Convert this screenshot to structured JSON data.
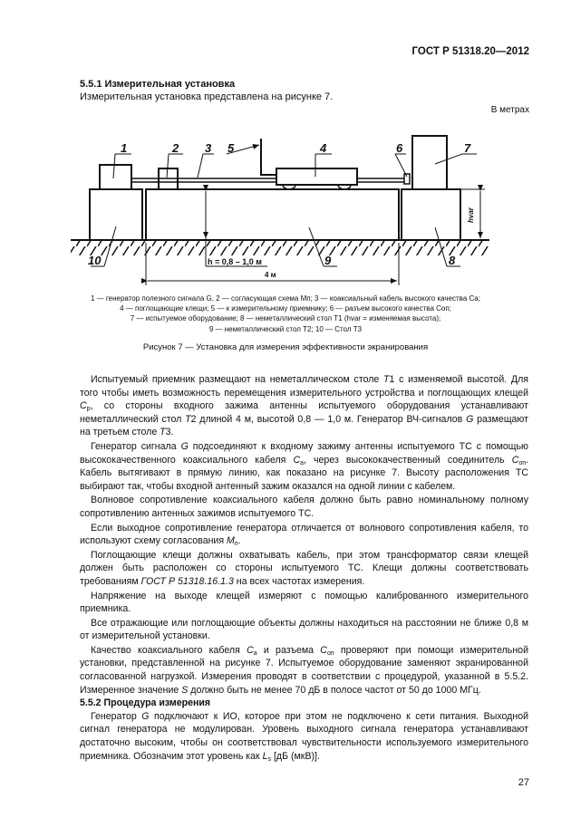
{
  "header": {
    "standard": "ГОСТ Р 51318.20—2012"
  },
  "section_551": {
    "title": "5.5.1 Измерительная установка",
    "intro": "Измерительная установка представлена на рисунке 7."
  },
  "figure": {
    "units_note": "В метрах",
    "labels": [
      "1",
      "2",
      "3",
      "5",
      "4",
      "6",
      "7",
      "10",
      "9",
      "8"
    ],
    "h_label": "h = 0,8 – 1,0 м",
    "length_label": "4 м",
    "hvar_label": "hvar",
    "legend": [
      "1 — генератор полезного сигнала G, 2 — согласующая схема Mп; 3 — коаксиальный кабель высокого качества Cа;",
      "4 — поглощающие клещи; 5 — к измерительному приемнику; 6 — разъем высокого качества Cоп;",
      "7 — испытуемое оборудование; 8 — неметаллический стол T1 (hvar = изменяемая высота);",
      "9 — неметаллический стол T2; 10 — Стол T3"
    ],
    "caption": "Рисунок 7 — Установка для измерения эффективности экранирования"
  },
  "body": [
    [
      {
        "t": "Испытуемый приемник размещают на неметаллическом столе "
      },
      {
        "t": "T",
        "i": 1
      },
      {
        "t": "1 с изменяемой высотой. Для того чтобы иметь возможность перемещения измерительного устройства и поглощающих клещей "
      },
      {
        "t": "C",
        "i": 1
      },
      {
        "t": "p",
        "s": 1
      },
      {
        "t": ", со стороны входного зажима антенны испытуемого оборудования устанавливают неметаллический стол "
      },
      {
        "t": "T",
        "i": 1
      },
      {
        "t": "2 длиной 4 м, высотой 0,8 — 1,0 м. Генератор ВЧ-сигналов "
      },
      {
        "t": "G",
        "i": 1
      },
      {
        "t": " размещают на третьем столе "
      },
      {
        "t": "T",
        "i": 1
      },
      {
        "t": "3."
      }
    ],
    [
      {
        "t": "Генератор сигнала "
      },
      {
        "t": "G",
        "i": 1
      },
      {
        "t": " подсоединяют к входному зажиму антенны испытуемого ТС с помощью высококачественного коаксиального кабеля "
      },
      {
        "t": "C",
        "i": 1
      },
      {
        "t": "a",
        "s": 1
      },
      {
        "t": ", через высококачественный соединитель "
      },
      {
        "t": "C",
        "i": 1
      },
      {
        "t": "оп",
        "s": 1
      },
      {
        "t": ". Кабель вытягивают в прямую линию, как показано на рисунке 7. Высоту расположения ТС выбирают так, чтобы входной антенный зажим оказался на одной линии с кабелем."
      }
    ],
    [
      {
        "t": "Волновое сопротивление коаксиального кабеля должно быть равно номинальному полному сопротивлению антенных зажимов испытуемого ТС."
      }
    ],
    [
      {
        "t": "Если выходное сопротивление генератора отличается от волнового сопротивления кабеля, то используют схему согласования "
      },
      {
        "t": "M",
        "i": 1
      },
      {
        "t": "п",
        "s": 1
      },
      {
        "t": "."
      }
    ],
    [
      {
        "t": "Поглощающие клещи должны охватывать кабель, при этом трансформатор связи клещей должен быть расположен со стороны испытуемого ТС. Клещи должны соответствовать требованиям "
      },
      {
        "t": "ГОСТ Р 51318.16.1.3",
        "i": 1
      },
      {
        "t": " на всех частотах измерения."
      }
    ],
    [
      {
        "t": "Напряжение на выходе клещей измеряют с помощью калиброванного измерительного приемника."
      }
    ],
    [
      {
        "t": "Все отражающие или поглощающие объекты должны находиться на расстоянии не ближе 0,8 м от измерительной установки."
      }
    ],
    [
      {
        "t": "Качество коаксиального кабеля "
      },
      {
        "t": "C",
        "i": 1
      },
      {
        "t": "a",
        "s": 1
      },
      {
        "t": " и разъема "
      },
      {
        "t": "C",
        "i": 1
      },
      {
        "t": "оп",
        "s": 1
      },
      {
        "t": "  проверяют при помощи измерительной установки, представленной на рисунке 7. Испытуемое оборудование  заменяют экранированной согласованной нагрузкой. Измерения проводят в соответствии с процедурой, указанной в 5.5.2. Измеренное значение "
      },
      {
        "t": "S",
        "i": 1
      },
      {
        "t": " должно быть не менее 70 дБ в полосе частот от 50 до 1000 МГц."
      }
    ],
    [
      {
        "t": "5.5.2 Процедура измерения",
        "b": 1
      }
    ],
    [
      {
        "t": "Генератор "
      },
      {
        "t": "G",
        "i": 1
      },
      {
        "t": " подключают к ИО, которое при этом не подключено к сети питания. Выходной сигнал генератора не модулирован. Уровень выходного сигнала генератора устанавливают достаточно высоким, чтобы он соответствовал чувствительности используемого измерительного приемника. Обозначим этот уровень как "
      },
      {
        "t": "L",
        "i": 1
      },
      {
        "t": "s",
        "s": 1
      },
      {
        "t": " [дБ (мкВ)]."
      }
    ]
  ],
  "page_number": "27"
}
